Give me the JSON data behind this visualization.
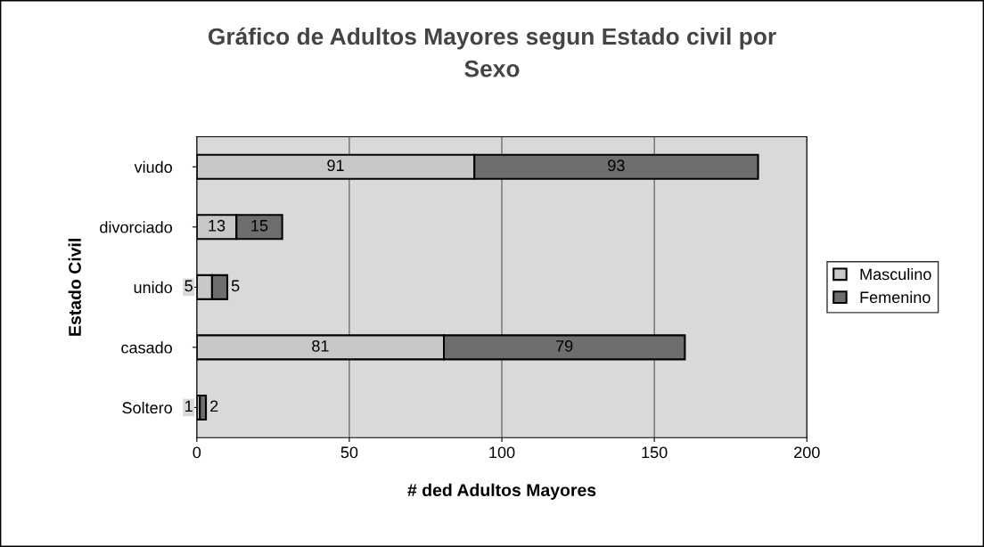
{
  "chart_data": {
    "type": "bar",
    "orientation": "horizontal",
    "stacked": true,
    "title": "Gráfico de Adultos Mayores segun Estado civil por\nSexo",
    "xlabel": "# ded Adultos Mayores",
    "ylabel": "Estado Civil",
    "categories": [
      "viudo",
      "divorciado",
      "unido",
      "casado",
      "Soltero"
    ],
    "series": [
      {
        "name": "Masculino",
        "color": "#c8c8c8",
        "values": [
          91,
          13,
          5,
          81,
          1
        ]
      },
      {
        "name": "Femenino",
        "color": "#6e6e6e",
        "values": [
          93,
          15,
          5,
          79,
          2
        ]
      }
    ],
    "xlim": [
      0,
      200
    ],
    "xticks": [
      0,
      50,
      100,
      150,
      200
    ],
    "grid": "x",
    "legend": "right",
    "data_labels": true
  }
}
